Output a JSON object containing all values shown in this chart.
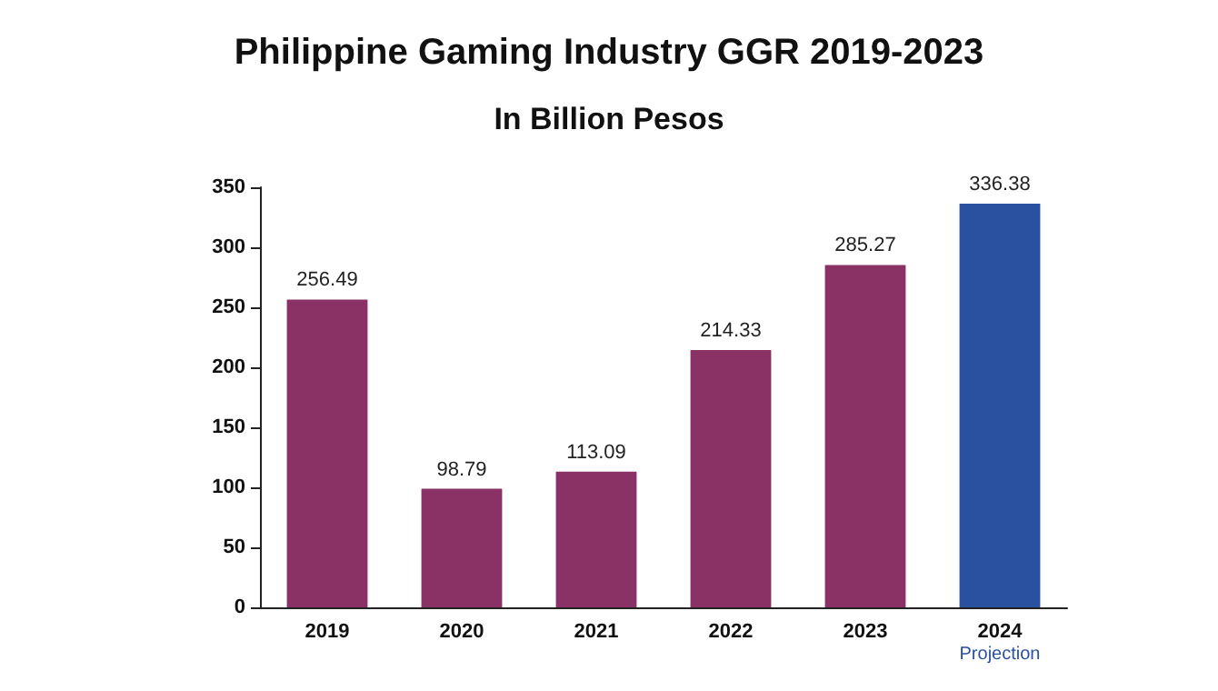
{
  "chart_data": {
    "type": "bar",
    "title": "Philippine Gaming Industry GGR 2019-2023",
    "subtitle": "In Billion Pesos",
    "categories": [
      "2019",
      "2020",
      "2021",
      "2022",
      "2023",
      "2024"
    ],
    "values": [
      256.49,
      98.79,
      113.09,
      214.33,
      285.27,
      336.38
    ],
    "colors": [
      "#8a3266",
      "#8a3266",
      "#8a3266",
      "#8a3266",
      "#8a3266",
      "#2a50a0"
    ],
    "ylim": [
      0,
      350
    ],
    "yticks": [
      0,
      50,
      100,
      150,
      200,
      250,
      300,
      350
    ],
    "grid": false,
    "data_labels": true,
    "annotations": [
      "Projection"
    ]
  }
}
